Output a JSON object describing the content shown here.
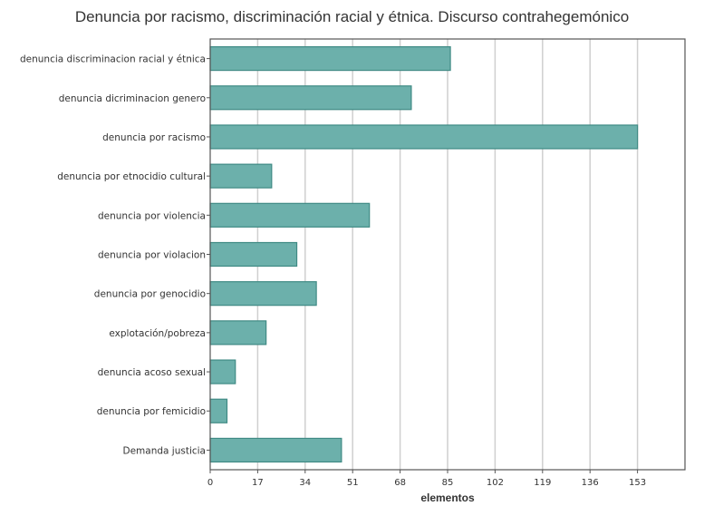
{
  "chart_data": {
    "type": "bar",
    "orientation": "horizontal",
    "title": "Denuncia por racismo, discriminación racial y étnica. Discurso contrahegemónico",
    "xlabel": "elementos",
    "ylabel": "",
    "categories": [
      "denuncia discriminacion racial y étnica",
      "denuncia dicriminacion genero",
      "denuncia por racismo",
      "denuncia por etnocidio cultural",
      "denuncia por violencia",
      "denuncia por violacion",
      "denuncia por genocidio",
      "explotación/pobreza",
      "denuncia acoso sexual",
      "denuncia por femicidio",
      "Demanda justicia"
    ],
    "values": [
      86,
      72,
      153,
      22,
      57,
      31,
      38,
      20,
      9,
      6,
      47
    ],
    "x_ticks": [
      0,
      17,
      34,
      51,
      68,
      85,
      102,
      119,
      136,
      153
    ],
    "xlim": [
      0,
      170
    ],
    "grid": "vertical",
    "colors": {
      "bar_fill": "#6cb0ab",
      "bar_stroke": "#3f8a84",
      "grid": "#cfcfcf",
      "axis": "#555555"
    }
  }
}
